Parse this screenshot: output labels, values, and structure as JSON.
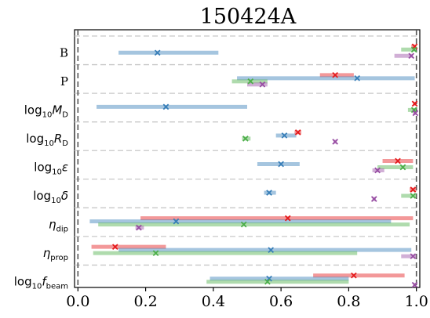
{
  "chart_data": {
    "type": "interval",
    "title": "150424A",
    "xlim": [
      -0.01,
      1.01
    ],
    "xticks": [
      "0.0",
      "0.2",
      "0.4",
      "0.6",
      "0.8",
      "1.0"
    ],
    "xtick_values": [
      0.0,
      0.2,
      0.4,
      0.6,
      0.8,
      1.0
    ],
    "vlines": [
      0.0,
      1.0
    ],
    "grid": "dashed horizontal separators between parameters",
    "colors": {
      "red": "#e41a1c",
      "blue": "#377eb8",
      "green": "#4daf4a",
      "purple": "#984ea3"
    },
    "parameters": [
      {
        "label": "B",
        "math": false,
        "series": [
          {
            "color": "red",
            "low": 0.985,
            "high": 1.0,
            "point": 0.995
          },
          {
            "color": "green",
            "low": 0.955,
            "high": 1.0,
            "point": 0.993
          },
          {
            "color": "blue",
            "low": 0.12,
            "high": 0.415,
            "point": 0.235
          },
          {
            "color": "purple",
            "low": 0.935,
            "high": 0.99,
            "point": 0.985
          }
        ]
      },
      {
        "label": "P",
        "math": false,
        "series": [
          {
            "color": "red",
            "low": 0.715,
            "high": 0.815,
            "point": 0.76
          },
          {
            "color": "blue",
            "low": 0.47,
            "high": 0.995,
            "point": 0.825
          },
          {
            "color": "green",
            "low": 0.455,
            "high": 0.56,
            "point": 0.51
          },
          {
            "color": "purple",
            "low": 0.5,
            "high": 0.56,
            "point": 0.545
          }
        ]
      },
      {
        "label": "log10M_D",
        "base": "log",
        "sub0": "10",
        "var": "M",
        "sub1": "D",
        "math": true,
        "series": [
          {
            "color": "red",
            "low": 0.99,
            "high": 1.0,
            "point": 0.995
          },
          {
            "color": "blue",
            "low": 0.055,
            "high": 0.5,
            "point": 0.26
          },
          {
            "color": "green",
            "low": 0.975,
            "high": 1.0,
            "point": 0.993
          },
          {
            "color": "purple",
            "low": 0.99,
            "high": 1.0,
            "point": 0.997
          }
        ]
      },
      {
        "label": "log10R_D",
        "base": "log",
        "sub0": "10",
        "var": "R",
        "sub1": "D",
        "math": true,
        "series": [
          {
            "color": "red",
            "low": 0.64,
            "high": 0.66,
            "point": 0.65
          },
          {
            "color": "blue",
            "low": 0.585,
            "high": 0.645,
            "point": 0.61
          },
          {
            "color": "green",
            "low": 0.485,
            "high": 0.51,
            "point": 0.495
          },
          {
            "color": "purple",
            "low": 0.755,
            "high": 0.765,
            "point": 0.76
          }
        ]
      },
      {
        "label": "log10ε",
        "base": "log",
        "sub0": "10",
        "var": "ε",
        "sub1": "",
        "math": true,
        "series": [
          {
            "color": "red",
            "low": 0.9,
            "high": 0.99,
            "point": 0.945
          },
          {
            "color": "blue",
            "low": 0.53,
            "high": 0.655,
            "point": 0.6
          },
          {
            "color": "green",
            "low": 0.885,
            "high": 0.99,
            "point": 0.96
          },
          {
            "color": "purple",
            "low": 0.87,
            "high": 0.905,
            "point": 0.885
          }
        ]
      },
      {
        "label": "log10δ",
        "base": "log",
        "sub0": "10",
        "var": "δ",
        "sub1": "",
        "math": true,
        "series": [
          {
            "color": "red",
            "low": 0.98,
            "high": 1.0,
            "point": 0.99
          },
          {
            "color": "blue",
            "low": 0.55,
            "high": 0.585,
            "point": 0.565
          },
          {
            "color": "green",
            "low": 0.955,
            "high": 1.0,
            "point": 0.99
          },
          {
            "color": "purple",
            "low": 0.87,
            "high": 0.88,
            "point": 0.875
          }
        ]
      },
      {
        "label": "η_dip",
        "base": "",
        "sub0": "",
        "var": "η",
        "sub1": "dip",
        "math": true,
        "series": [
          {
            "color": "red",
            "low": 0.185,
            "high": 0.99,
            "point": 0.62
          },
          {
            "color": "blue",
            "low": 0.035,
            "high": 0.925,
            "point": 0.29
          },
          {
            "color": "green",
            "low": 0.06,
            "high": 0.98,
            "point": 0.49
          },
          {
            "color": "purple",
            "low": 0.17,
            "high": 0.195,
            "point": 0.18
          }
        ]
      },
      {
        "label": "η_prop",
        "base": "",
        "sub0": "",
        "var": "η",
        "sub1": "prop",
        "math": true,
        "series": [
          {
            "color": "red",
            "low": 0.04,
            "high": 0.26,
            "point": 0.11
          },
          {
            "color": "blue",
            "low": 0.12,
            "high": 0.985,
            "point": 0.57
          },
          {
            "color": "green",
            "low": 0.045,
            "high": 0.825,
            "point": 0.23
          },
          {
            "color": "purple",
            "low": 0.955,
            "high": 1.0,
            "point": 0.99
          }
        ]
      },
      {
        "label": "log10f_beam",
        "base": "log",
        "sub0": "10",
        "var": "f",
        "sub1": "beam",
        "math": true,
        "series": [
          {
            "color": "red",
            "low": 0.695,
            "high": 0.965,
            "point": 0.815
          },
          {
            "color": "blue",
            "low": 0.39,
            "high": 0.8,
            "point": 0.565
          },
          {
            "color": "green",
            "low": 0.38,
            "high": 0.8,
            "point": 0.56
          },
          {
            "color": "purple",
            "low": 0.99,
            "high": 1.0,
            "point": 0.995
          }
        ]
      }
    ]
  }
}
